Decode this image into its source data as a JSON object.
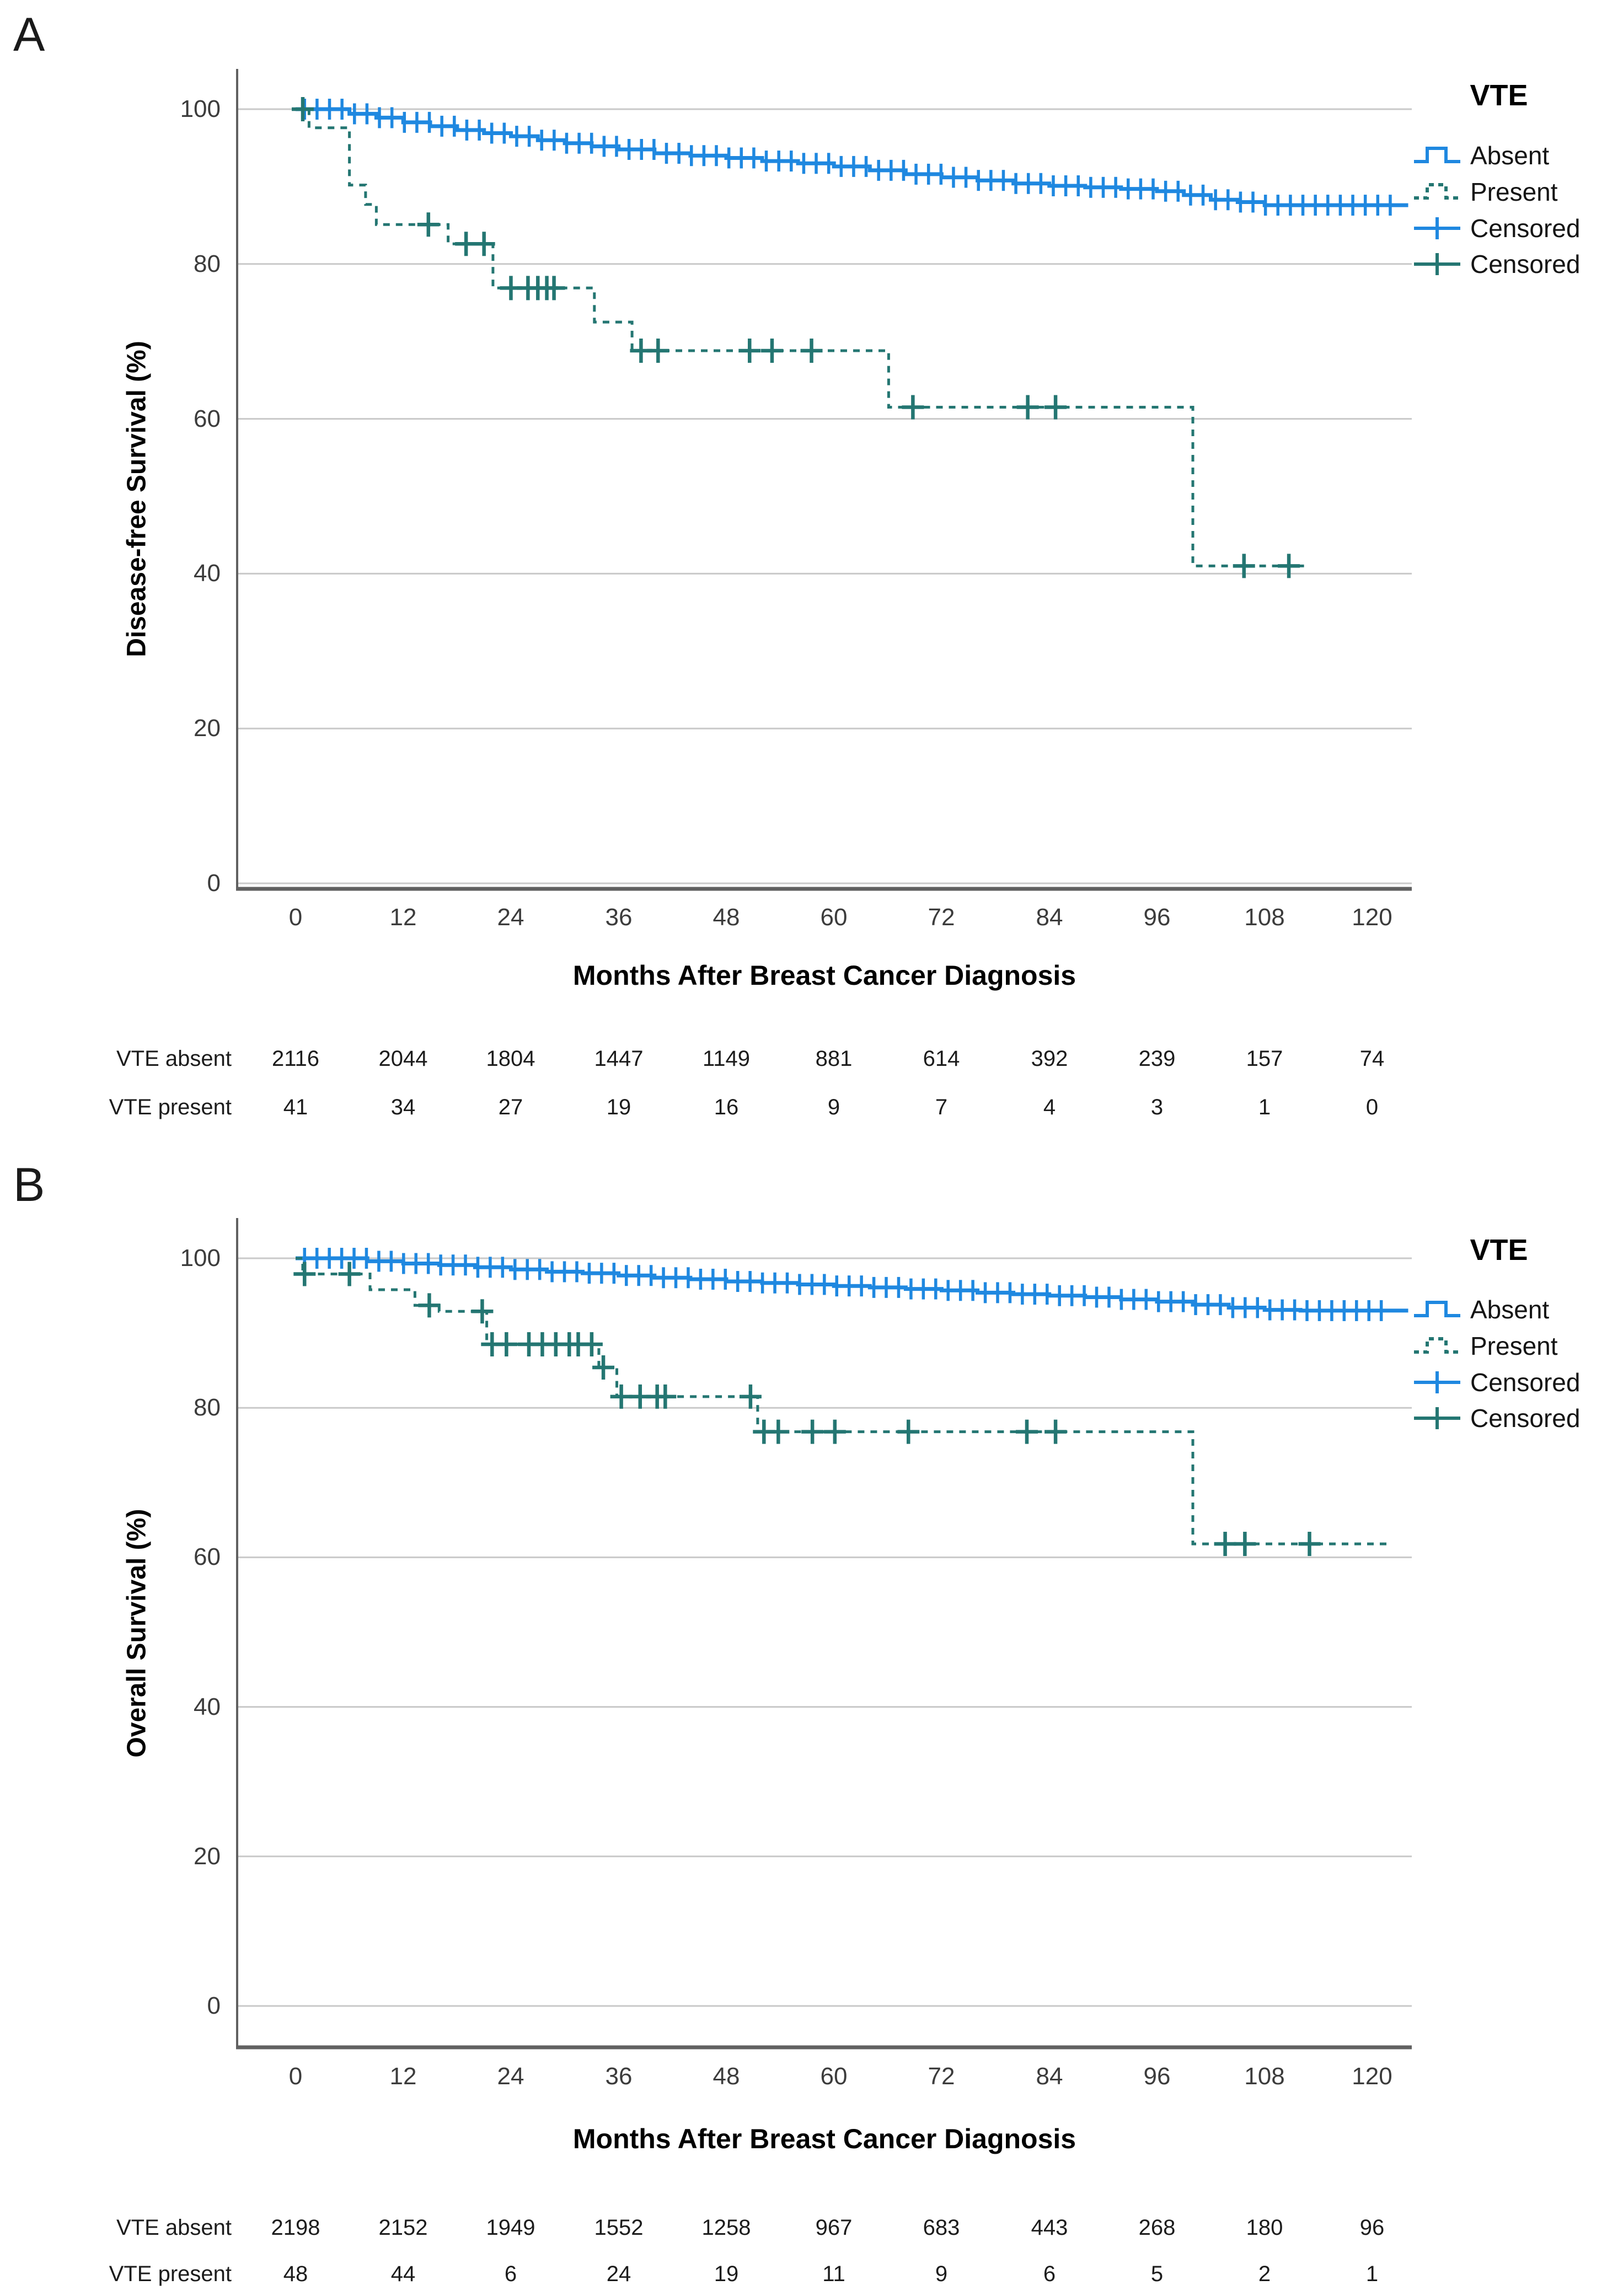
{
  "figure": {
    "panels": [
      "A",
      "B"
    ]
  },
  "chart_data": [
    {
      "type": "line",
      "subtype": "kaplan_meier_step",
      "panel_label": "A",
      "xlabel": "Months After Breast Cancer Diagnosis",
      "ylabel": "Disease-free Survival (%)",
      "xlim": [
        0,
        126
      ],
      "ylim": [
        0,
        105
      ],
      "x_ticks": [
        0,
        12,
        24,
        36,
        48,
        60,
        72,
        84,
        96,
        108,
        120
      ],
      "y_ticks": [
        100,
        80,
        60,
        40,
        20,
        0
      ],
      "grid": true,
      "legend": {
        "title": "VTE",
        "position": "right-top",
        "items": [
          {
            "label": "Absent",
            "symbol": "step-solid",
            "color": "#1f88e0"
          },
          {
            "label": "Present",
            "symbol": "step-dashed",
            "color": "#247672"
          },
          {
            "label": "Censored",
            "symbol": "plus",
            "color": "#1f88e0"
          },
          {
            "label": "Censored",
            "symbol": "plus",
            "color": "#247672"
          }
        ]
      },
      "series": [
        {
          "name": "Absent",
          "style": "solid",
          "color": "#1f88e0",
          "steps": [
            [
              0,
              100
            ],
            [
              4,
              100
            ],
            [
              6,
              99.4
            ],
            [
              9,
              98.9
            ],
            [
              12,
              98.3
            ],
            [
              15,
              97.8
            ],
            [
              18,
              97.3
            ],
            [
              21,
              96.9
            ],
            [
              24,
              96.5
            ],
            [
              27,
              96.0
            ],
            [
              30,
              95.6
            ],
            [
              33,
              95.2
            ],
            [
              36,
              94.8
            ],
            [
              40,
              94.3
            ],
            [
              44,
              94.0
            ],
            [
              48,
              93.7
            ],
            [
              52,
              93.3
            ],
            [
              56,
              93.0
            ],
            [
              60,
              92.6
            ],
            [
              64,
              92.1
            ],
            [
              68,
              91.6
            ],
            [
              72,
              91.2
            ],
            [
              76,
              90.8
            ],
            [
              80,
              90.4
            ],
            [
              84,
              90.1
            ],
            [
              88,
              89.9
            ],
            [
              92,
              89.7
            ],
            [
              96,
              89.4
            ],
            [
              99,
              88.9
            ],
            [
              102,
              88.3
            ],
            [
              105,
              88.0
            ],
            [
              108,
              87.6
            ],
            [
              124,
              87.6
            ]
          ],
          "censor_marks": {
            "type": "dense-ticks",
            "start": 1,
            "end": 122,
            "count": 88
          }
        },
        {
          "name": "Present",
          "style": "dashed",
          "color": "#247672",
          "steps": [
            [
              0,
              100
            ],
            [
              1.5,
              97.6
            ],
            [
              6,
              90.2
            ],
            [
              7.8,
              87.7
            ],
            [
              9,
              85.1
            ],
            [
              17,
              82.6
            ],
            [
              22,
              76.9
            ],
            [
              33.3,
              72.5
            ],
            [
              37.5,
              68.8
            ],
            [
              66.1,
              61.5
            ],
            [
              100,
              41.0
            ],
            [
              113,
              41.0
            ]
          ],
          "censor_months": [
            0.8,
            14.8,
            19,
            21,
            24,
            25.9,
            27,
            28,
            28.8,
            38.5,
            40.4,
            50.6,
            53.1,
            57.5,
            68.8,
            81.6,
            84.7,
            105.7,
            110.7
          ]
        }
      ],
      "risk_table": {
        "rows": [
          {
            "label": "VTE absent",
            "values": [
              "2116",
              "2044",
              "1804",
              "1447",
              "1149",
              "881",
              "614",
              "392",
              "239",
              "157",
              "74"
            ]
          },
          {
            "label": "VTE present",
            "values": [
              "41",
              "34",
              "27",
              "19",
              "16",
              "9",
              "7",
              "4",
              "3",
              "1",
              "0"
            ]
          }
        ]
      }
    },
    {
      "type": "line",
      "subtype": "kaplan_meier_step",
      "panel_label": "B",
      "xlabel": "Months After Breast Cancer Diagnosis",
      "ylabel": "Overall Survival (%)",
      "xlim": [
        0,
        126
      ],
      "ylim": [
        0,
        105
      ],
      "x_ticks": [
        0,
        12,
        24,
        36,
        48,
        60,
        72,
        84,
        96,
        108,
        120
      ],
      "y_ticks": [
        100,
        80,
        60,
        40,
        20,
        0
      ],
      "grid": true,
      "legend": {
        "title": "VTE",
        "position": "right-top",
        "items": [
          {
            "label": "Absent",
            "symbol": "step-solid",
            "color": "#1f88e0"
          },
          {
            "label": "Present",
            "symbol": "step-dashed",
            "color": "#247672"
          },
          {
            "label": "Censored",
            "symbol": "plus",
            "color": "#1f88e0"
          },
          {
            "label": "Censored",
            "symbol": "plus",
            "color": "#247672"
          }
        ]
      },
      "series": [
        {
          "name": "Absent",
          "style": "solid",
          "color": "#1f88e0",
          "steps": [
            [
              0,
              100
            ],
            [
              5,
              100
            ],
            [
              8,
              99.6
            ],
            [
              12,
              99.3
            ],
            [
              16,
              99.1
            ],
            [
              20,
              98.8
            ],
            [
              24,
              98.5
            ],
            [
              28,
              98.2
            ],
            [
              32,
              98.0
            ],
            [
              36,
              97.7
            ],
            [
              40,
              97.4
            ],
            [
              44,
              97.2
            ],
            [
              48,
              96.9
            ],
            [
              52,
              96.7
            ],
            [
              56,
              96.5
            ],
            [
              60,
              96.3
            ],
            [
              64,
              96.1
            ],
            [
              68,
              95.9
            ],
            [
              72,
              95.7
            ],
            [
              76,
              95.4
            ],
            [
              80,
              95.2
            ],
            [
              84,
              95.0
            ],
            [
              88,
              94.8
            ],
            [
              92,
              94.5
            ],
            [
              96,
              94.2
            ],
            [
              100,
              93.8
            ],
            [
              104,
              93.4
            ],
            [
              108,
              93.1
            ],
            [
              112,
              93.0
            ],
            [
              124,
              93.0
            ]
          ],
          "censor_marks": {
            "type": "dense-ticks",
            "start": 1,
            "end": 121,
            "count": 88
          }
        },
        {
          "name": "Present",
          "style": "dashed",
          "color": "#247672",
          "steps": [
            [
              0,
              100
            ],
            [
              0.8,
              97.9
            ],
            [
              8.3,
              95.8
            ],
            [
              13.3,
              93.7
            ],
            [
              16,
              92.9
            ],
            [
              21.3,
              88.5
            ],
            [
              33.8,
              85.4
            ],
            [
              35.8,
              81.5
            ],
            [
              51.5,
              76.8
            ],
            [
              100,
              61.8
            ],
            [
              122,
              61.8
            ]
          ],
          "censor_months": [
            1,
            6,
            14.9,
            20.8,
            21.9,
            23.5,
            26,
            27.5,
            29,
            30.5,
            31.5,
            33,
            34.3,
            36.3,
            38.4,
            40.3,
            41.2,
            50.7,
            52.2,
            53.8,
            57.6,
            60.1,
            68.3,
            81.5,
            84.7,
            103.6,
            105.8,
            113
          ]
        }
      ],
      "risk_table": {
        "rows": [
          {
            "label": "VTE absent",
            "values": [
              "2198",
              "2152",
              "1949",
              "1552",
              "1258",
              "967",
              "683",
              "443",
              "268",
              "180",
              "96"
            ]
          },
          {
            "label": "VTE present",
            "values": [
              "48",
              "44",
              "6",
              "24",
              "19",
              "11",
              "9",
              "6",
              "5",
              "2",
              "1"
            ]
          }
        ]
      }
    }
  ]
}
